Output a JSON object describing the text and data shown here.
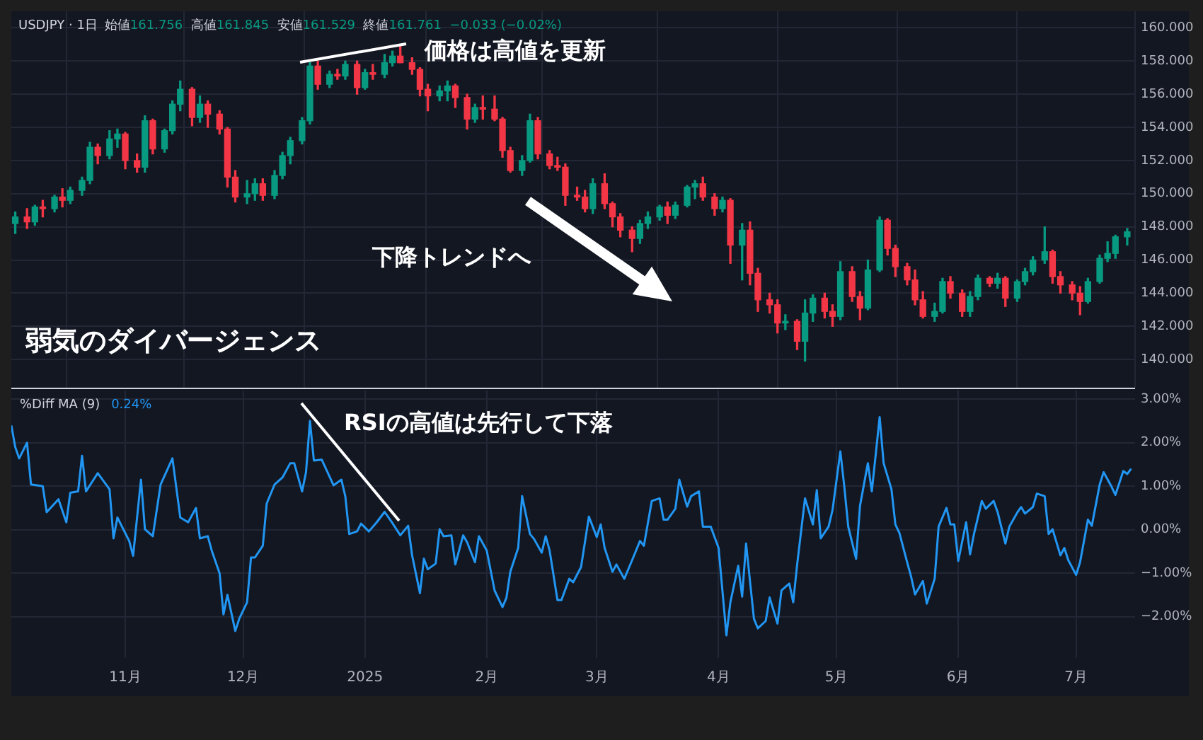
{
  "chart_data": [
    {
      "type": "candlestick",
      "title": "USDJPY · 1日",
      "subtitle": "始値161.756  高値161.845  安値161.529  終値161.761  −0.033 (−0.02%)",
      "x": [
        "2024-10-04",
        "2024-10-07",
        "2024-10-09",
        "2024-10-11",
        "2024-10-14",
        "2024-10-16",
        "2024-10-18",
        "2024-10-21",
        "2024-10-23",
        "2024-10-25",
        "2024-10-28",
        "2024-10-30",
        "2024-11-01",
        "2024-11-04",
        "2024-11-06",
        "2024-11-08",
        "2024-11-11",
        "2024-11-13",
        "2024-11-15",
        "2024-11-18",
        "2024-11-20",
        "2024-11-22",
        "2024-11-25",
        "2024-11-27",
        "2024-11-29",
        "2024-12-02",
        "2024-12-04",
        "2024-12-06",
        "2024-12-09",
        "2024-12-11",
        "2024-12-13",
        "2024-12-16",
        "2024-12-18",
        "2024-12-20",
        "2024-12-23",
        "2024-12-25",
        "2024-12-27",
        "2024-12-30",
        "2025-01-01",
        "2025-01-03",
        "2025-01-06",
        "2025-01-08",
        "2025-01-10",
        "2025-01-13",
        "2025-01-15",
        "2025-01-17",
        "2025-01-20",
        "2025-01-22",
        "2025-01-24",
        "2025-01-27",
        "2025-01-29",
        "2025-01-31",
        "2025-02-03",
        "2025-02-05",
        "2025-02-07",
        "2025-02-10",
        "2025-02-12",
        "2025-02-14",
        "2025-02-17",
        "2025-02-19",
        "2025-02-21",
        "2025-02-24",
        "2025-02-26",
        "2025-02-28",
        "2025-03-03",
        "2025-03-05",
        "2025-03-07",
        "2025-03-10",
        "2025-03-12",
        "2025-03-14",
        "2025-03-17",
        "2025-03-19",
        "2025-03-21",
        "2025-03-24",
        "2025-03-26",
        "2025-03-28",
        "2025-03-31",
        "2025-04-02",
        "2025-04-04",
        "2025-04-07",
        "2025-04-09",
        "2025-04-11",
        "2025-04-14",
        "2025-04-16",
        "2025-04-18",
        "2025-04-21",
        "2025-04-23",
        "2025-04-25",
        "2025-04-28",
        "2025-04-30",
        "2025-05-02",
        "2025-05-05",
        "2025-05-07",
        "2025-05-09",
        "2025-05-12",
        "2025-05-14",
        "2025-05-16",
        "2025-05-19",
        "2025-05-21",
        "2025-05-23",
        "2025-05-26",
        "2025-05-28",
        "2025-05-30",
        "2025-06-02",
        "2025-06-04",
        "2025-06-06",
        "2025-06-09",
        "2025-06-11",
        "2025-06-13",
        "2025-06-16",
        "2025-06-18",
        "2025-06-20",
        "2025-06-23",
        "2025-06-25",
        "2025-06-27",
        "2025-06-30",
        "2025-07-02",
        "2025-07-04",
        "2025-07-07",
        "2025-07-09",
        "2025-07-11",
        "2025-07-14"
      ],
      "ohlc": [
        [
          148.2,
          148.9,
          147.6,
          148.6
        ],
        [
          148.6,
          149.1,
          147.9,
          148.3
        ],
        [
          148.3,
          149.3,
          148.1,
          149.2
        ],
        [
          149.2,
          149.6,
          148.6,
          149.1
        ],
        [
          149.1,
          149.9,
          148.9,
          149.8
        ],
        [
          149.8,
          150.3,
          149.2,
          149.6
        ],
        [
          149.6,
          150.4,
          149.4,
          150.2
        ],
        [
          150.2,
          151.0,
          149.9,
          150.8
        ],
        [
          150.8,
          153.1,
          150.6,
          152.8
        ],
        [
          152.8,
          153.0,
          151.8,
          152.3
        ],
        [
          152.3,
          153.8,
          152.1,
          153.3
        ],
        [
          153.3,
          153.9,
          152.8,
          153.6
        ],
        [
          153.6,
          153.7,
          151.5,
          152.0
        ],
        [
          152.0,
          152.4,
          151.3,
          151.6
        ],
        [
          151.6,
          154.7,
          151.3,
          154.4
        ],
        [
          154.4,
          154.5,
          152.4,
          152.7
        ],
        [
          152.7,
          153.9,
          152.5,
          153.8
        ],
        [
          153.8,
          155.6,
          153.6,
          155.4
        ],
        [
          155.4,
          156.8,
          155.0,
          156.3
        ],
        [
          156.3,
          156.4,
          154.1,
          154.6
        ],
        [
          154.6,
          155.9,
          154.3,
          155.4
        ],
        [
          155.4,
          155.6,
          154.0,
          154.8
        ],
        [
          154.8,
          155.0,
          153.6,
          153.9
        ],
        [
          153.9,
          154.0,
          150.4,
          151.0
        ],
        [
          151.0,
          151.4,
          149.5,
          149.8
        ],
        [
          149.8,
          150.8,
          149.4,
          150.0
        ],
        [
          150.0,
          150.9,
          149.6,
          150.6
        ],
        [
          150.6,
          150.9,
          149.6,
          149.9
        ],
        [
          149.9,
          151.4,
          149.7,
          151.1
        ],
        [
          151.1,
          152.5,
          150.9,
          152.3
        ],
        [
          152.3,
          153.4,
          151.8,
          153.2
        ],
        [
          153.2,
          154.6,
          153.0,
          154.4
        ],
        [
          154.4,
          157.9,
          154.2,
          157.7
        ],
        [
          157.7,
          158.0,
          156.3,
          156.6
        ],
        [
          156.6,
          157.4,
          156.4,
          157.2
        ],
        [
          157.2,
          157.5,
          156.9,
          157.1
        ],
        [
          157.1,
          158.0,
          156.9,
          157.8
        ],
        [
          157.8,
          158.0,
          156.0,
          156.4
        ],
        [
          156.4,
          157.5,
          156.3,
          157.3
        ],
        [
          157.3,
          157.8,
          156.9,
          157.2
        ],
        [
          157.2,
          158.4,
          157.0,
          157.9
        ],
        [
          157.9,
          158.6,
          157.7,
          158.3
        ],
        [
          158.3,
          158.9,
          157.9,
          157.9
        ],
        [
          157.9,
          158.2,
          157.2,
          157.5
        ],
        [
          157.5,
          157.6,
          155.9,
          156.3
        ],
        [
          156.3,
          156.6,
          155.0,
          155.9
        ],
        [
          155.9,
          156.5,
          155.6,
          156.2
        ],
        [
          156.2,
          156.8,
          155.6,
          156.5
        ],
        [
          156.5,
          156.6,
          155.2,
          155.8
        ],
        [
          155.8,
          156.0,
          153.9,
          154.5
        ],
        [
          154.5,
          155.4,
          154.3,
          155.2
        ],
        [
          155.2,
          155.9,
          154.5,
          155.1
        ],
        [
          155.1,
          155.9,
          154.4,
          154.5
        ],
        [
          154.5,
          154.6,
          152.2,
          152.6
        ],
        [
          152.6,
          152.8,
          151.3,
          151.4
        ],
        [
          151.4,
          152.3,
          151.1,
          152.0
        ],
        [
          152.0,
          154.8,
          151.9,
          154.4
        ],
        [
          154.4,
          154.6,
          152.1,
          152.4
        ],
        [
          152.4,
          152.6,
          151.5,
          151.7
        ],
        [
          151.7,
          152.2,
          151.4,
          151.6
        ],
        [
          151.6,
          151.8,
          149.3,
          149.9
        ],
        [
          149.9,
          150.4,
          149.6,
          149.8
        ],
        [
          149.8,
          150.2,
          148.9,
          149.1
        ],
        [
          149.1,
          150.9,
          148.8,
          150.6
        ],
        [
          150.6,
          151.2,
          149.1,
          149.4
        ],
        [
          149.4,
          149.5,
          148.0,
          148.6
        ],
        [
          148.6,
          148.8,
          147.4,
          147.8
        ],
        [
          147.8,
          148.0,
          146.5,
          147.3
        ],
        [
          147.3,
          148.4,
          147.0,
          148.2
        ],
        [
          148.2,
          148.9,
          147.9,
          148.6
        ],
        [
          148.6,
          149.3,
          148.4,
          149.2
        ],
        [
          149.2,
          149.5,
          148.2,
          148.7
        ],
        [
          148.7,
          149.5,
          148.5,
          149.3
        ],
        [
          149.3,
          150.5,
          149.2,
          150.4
        ],
        [
          150.4,
          150.8,
          149.7,
          150.6
        ],
        [
          150.6,
          151.0,
          149.6,
          149.8
        ],
        [
          149.8,
          150.0,
          148.7,
          149.1
        ],
        [
          149.1,
          149.8,
          148.9,
          149.6
        ],
        [
          149.6,
          149.7,
          145.8,
          146.9
        ],
        [
          146.9,
          148.2,
          144.8,
          147.8
        ],
        [
          147.8,
          148.3,
          144.5,
          145.2
        ],
        [
          145.2,
          145.5,
          142.9,
          143.6
        ],
        [
          143.6,
          144.0,
          142.8,
          143.3
        ],
        [
          143.3,
          143.6,
          141.6,
          142.2
        ],
        [
          142.2,
          142.7,
          141.8,
          142.3
        ],
        [
          142.3,
          142.4,
          140.6,
          141.1
        ],
        [
          141.1,
          143.6,
          139.9,
          142.8
        ],
        [
          142.8,
          143.9,
          142.3,
          143.7
        ],
        [
          143.7,
          144.0,
          142.5,
          142.9
        ],
        [
          142.9,
          143.3,
          142.0,
          142.6
        ],
        [
          142.6,
          145.9,
          142.4,
          145.3
        ],
        [
          145.3,
          145.6,
          143.5,
          143.8
        ],
        [
          143.8,
          144.1,
          142.4,
          143.1
        ],
        [
          143.1,
          146.0,
          143.0,
          145.4
        ],
        [
          145.4,
          148.6,
          145.3,
          148.4
        ],
        [
          148.4,
          148.5,
          146.3,
          146.7
        ],
        [
          146.7,
          146.9,
          145.0,
          145.6
        ],
        [
          145.6,
          145.8,
          144.5,
          144.8
        ],
        [
          144.8,
          145.4,
          143.3,
          143.6
        ],
        [
          143.6,
          144.1,
          142.5,
          142.6
        ],
        [
          142.6,
          143.4,
          142.3,
          142.9
        ],
        [
          142.9,
          144.9,
          142.8,
          144.7
        ],
        [
          144.7,
          145.0,
          143.7,
          144.0
        ],
        [
          144.0,
          144.2,
          142.6,
          142.9
        ],
        [
          142.9,
          144.1,
          142.6,
          143.8
        ],
        [
          143.8,
          145.1,
          143.6,
          144.9
        ],
        [
          144.9,
          145.0,
          144.4,
          144.6
        ],
        [
          144.6,
          145.2,
          144.3,
          144.9
        ],
        [
          144.9,
          145.0,
          143.2,
          143.7
        ],
        [
          143.7,
          144.8,
          143.5,
          144.7
        ],
        [
          144.7,
          145.5,
          144.5,
          145.3
        ],
        [
          145.3,
          146.2,
          145.1,
          146.0
        ],
        [
          146.0,
          148.0,
          145.8,
          146.5
        ],
        [
          146.5,
          146.6,
          144.6,
          145.0
        ],
        [
          145.0,
          145.3,
          144.0,
          144.5
        ],
        [
          144.5,
          144.7,
          143.6,
          144.0
        ],
        [
          144.0,
          144.4,
          142.7,
          143.5
        ],
        [
          143.5,
          144.9,
          143.4,
          144.7
        ],
        [
          144.7,
          146.3,
          144.6,
          146.1
        ],
        [
          146.1,
          147.1,
          145.9,
          146.4
        ],
        [
          146.4,
          147.5,
          146.1,
          147.4
        ],
        [
          147.4,
          147.9,
          146.9,
          147.7
        ]
      ],
      "xlim": [
        "2024-10-03",
        "2025-07-16"
      ],
      "xticks": [
        {
          "value": "2024-11-01",
          "label": null
        },
        {
          "value": "2024-12-01",
          "label": null
        },
        {
          "value": "2025-01-01",
          "label": null
        },
        {
          "value": "2025-02-01",
          "label": null
        },
        {
          "value": "2025-03-01",
          "label": null
        },
        {
          "value": "2025-04-01",
          "label": null
        },
        {
          "value": "2025-05-01",
          "label": null
        },
        {
          "value": "2025-06-01",
          "label": null
        },
        {
          "value": "2025-07-01",
          "label": null
        }
      ],
      "ylim": [
        138.3,
        161.0
      ],
      "yticks": [
        {
          "value": 140,
          "label": "140.000"
        },
        {
          "value": 142,
          "label": "142.000"
        },
        {
          "value": 144,
          "label": "144.000"
        },
        {
          "value": 146,
          "label": "146.000"
        },
        {
          "value": 148,
          "label": "148.000"
        },
        {
          "value": 150,
          "label": "150.000"
        },
        {
          "value": 152,
          "label": "152.000"
        },
        {
          "value": 154,
          "label": "154.000"
        },
        {
          "value": 156,
          "label": "156.000"
        },
        {
          "value": 158,
          "label": "158.000"
        },
        {
          "value": 160,
          "label": "160.000"
        }
      ],
      "grid": true,
      "tick_labels": "y",
      "annotations": [
        "価格は高値を更新",
        "下降トレンドへ",
        "弱気のダイバージェンス"
      ]
    },
    {
      "type": "line",
      "x": [
        "2024-10-03",
        "2024-10-04",
        "2024-10-05",
        "2024-10-07",
        "2024-10-08",
        "2024-10-11",
        "2024-10-12",
        "2024-10-15",
        "2024-10-17",
        "2024-10-18",
        "2024-10-20",
        "2024-10-21",
        "2024-10-22",
        "2024-10-25",
        "2024-10-28",
        "2024-10-29",
        "2024-10-30",
        "2024-11-02",
        "2024-11-03",
        "2024-11-05",
        "2024-11-06",
        "2024-11-08",
        "2024-11-10",
        "2024-11-13",
        "2024-11-15",
        "2024-11-17",
        "2024-11-19",
        "2024-11-20",
        "2024-11-22",
        "2024-11-23",
        "2024-11-25",
        "2024-11-26",
        "2024-11-27",
        "2024-11-29",
        "2024-11-30",
        "2024-12-02",
        "2024-12-03",
        "2024-12-04",
        "2024-12-06",
        "2024-12-07",
        "2024-12-09",
        "2024-12-11",
        "2024-12-13",
        "2024-12-14",
        "2024-12-16",
        "2024-12-17",
        "2024-12-18",
        "2024-12-19",
        "2024-12-21",
        "2024-12-24",
        "2024-12-26",
        "2024-12-27",
        "2024-12-28",
        "2024-12-30",
        "2024-12-31",
        "2025-01-02",
        "2025-01-04",
        "2025-01-06",
        "2025-01-08",
        "2025-01-10",
        "2025-01-12",
        "2025-01-13",
        "2025-01-15",
        "2025-01-16",
        "2025-01-17",
        "2025-01-19",
        "2025-01-20",
        "2025-01-21",
        "2025-01-23",
        "2025-01-24",
        "2025-01-26",
        "2025-01-27",
        "2025-01-29",
        "2025-01-30",
        "2025-02-01",
        "2025-02-03",
        "2025-02-05",
        "2025-02-06",
        "2025-02-07",
        "2025-02-09",
        "2025-02-10",
        "2025-02-12",
        "2025-02-13",
        "2025-02-15",
        "2025-02-16",
        "2025-02-17",
        "2025-02-19",
        "2025-02-20",
        "2025-02-22",
        "2025-02-23",
        "2025-02-25",
        "2025-02-27",
        "2025-03-01",
        "2025-03-02",
        "2025-03-03",
        "2025-03-05",
        "2025-03-06",
        "2025-03-08",
        "2025-03-10",
        "2025-03-12",
        "2025-03-13",
        "2025-03-15",
        "2025-03-17",
        "2025-03-18",
        "2025-03-19",
        "2025-03-21",
        "2025-03-22",
        "2025-03-24",
        "2025-03-25",
        "2025-03-27",
        "2025-03-28",
        "2025-03-30",
        "2025-04-01",
        "2025-04-03",
        "2025-04-04",
        "2025-04-06",
        "2025-04-07",
        "2025-04-08",
        "2025-04-10",
        "2025-04-11",
        "2025-04-13",
        "2025-04-14",
        "2025-04-16",
        "2025-04-17",
        "2025-04-19",
        "2025-04-20",
        "2025-04-21",
        "2025-04-23",
        "2025-04-25",
        "2025-04-26",
        "2025-04-27",
        "2025-04-29",
        "2025-04-30",
        "2025-05-02",
        "2025-05-03",
        "2025-05-04",
        "2025-05-06",
        "2025-05-07",
        "2025-05-09",
        "2025-05-10",
        "2025-05-12",
        "2025-05-13",
        "2025-05-15",
        "2025-05-16",
        "2025-05-17",
        "2025-05-19",
        "2025-05-20",
        "2025-05-21",
        "2025-05-23",
        "2025-05-24",
        "2025-05-26",
        "2025-05-27",
        "2025-05-29",
        "2025-05-30",
        "2025-05-31",
        "2025-06-01",
        "2025-06-03",
        "2025-06-04",
        "2025-06-05",
        "2025-06-07",
        "2025-06-08",
        "2025-06-10",
        "2025-06-11",
        "2025-06-13",
        "2025-06-14",
        "2025-06-16",
        "2025-06-17",
        "2025-06-18",
        "2025-06-20",
        "2025-06-21",
        "2025-06-23",
        "2025-06-24",
        "2025-06-25",
        "2025-06-27",
        "2025-06-28",
        "2025-06-29",
        "2025-07-01",
        "2025-07-02",
        "2025-07-04",
        "2025-07-05",
        "2025-07-07",
        "2025-07-08",
        "2025-07-10",
        "2025-07-11",
        "2025-07-13",
        "2025-07-14",
        "2025-07-15"
      ],
      "series": [
        {
          "name": "%Diff MA (9)",
          "color": "#2196f3",
          "values": [
            2.4,
            1.9,
            1.64,
            2.0,
            1.04,
            1.0,
            0.4,
            0.7,
            0.17,
            0.85,
            0.88,
            1.7,
            0.88,
            1.3,
            0.93,
            -0.2,
            0.28,
            -0.26,
            -0.6,
            1.15,
            0.01,
            -0.15,
            1.04,
            1.64,
            0.28,
            0.17,
            0.5,
            -0.2,
            -0.15,
            -0.48,
            -1.0,
            -1.95,
            -1.5,
            -2.33,
            -2.05,
            -1.67,
            -0.64,
            -0.64,
            -0.37,
            0.6,
            1.04,
            1.2,
            1.53,
            1.53,
            0.88,
            1.32,
            2.5,
            1.59,
            1.61,
            1.02,
            1.15,
            0.77,
            -0.1,
            -0.04,
            0.14,
            -0.04,
            0.17,
            0.41,
            0.15,
            -0.13,
            0.09,
            -0.59,
            -1.46,
            -0.67,
            -0.91,
            -0.78,
            0.01,
            -0.15,
            -0.13,
            -0.8,
            -0.13,
            -0.29,
            -0.75,
            -0.15,
            -0.48,
            -1.4,
            -1.78,
            -1.57,
            -0.97,
            -0.42,
            0.77,
            -0.1,
            -0.21,
            -0.53,
            -0.15,
            -0.48,
            -1.62,
            -1.62,
            -1.13,
            -1.21,
            -0.86,
            0.3,
            -0.17,
            0.12,
            -0.42,
            -0.97,
            -0.8,
            -1.13,
            -0.7,
            -0.26,
            -0.37,
            0.66,
            0.72,
            0.23,
            0.23,
            0.48,
            1.15,
            0.53,
            0.77,
            0.88,
            0.07,
            0.07,
            -0.42,
            -2.43,
            -1.67,
            -0.83,
            -1.54,
            -0.32,
            -2.05,
            -2.27,
            -2.1,
            -1.56,
            -2.16,
            -1.4,
            -1.24,
            -1.67,
            -0.8,
            0.72,
            0.12,
            0.91,
            -0.2,
            0.07,
            0.45,
            1.8,
            0.99,
            0.07,
            -0.67,
            0.55,
            1.53,
            0.88,
            2.59,
            1.53,
            0.93,
            0.12,
            -0.07,
            -0.75,
            -1.08,
            -1.49,
            -1.18,
            -1.7,
            -1.13,
            0.07,
            0.5,
            0.12,
            0.12,
            -0.72,
            0.17,
            -0.57,
            -0.1,
            0.66,
            0.48,
            0.66,
            0.41,
            -0.32,
            0.07,
            0.39,
            0.52,
            0.37,
            0.52,
            0.83,
            0.77,
            -0.1,
            0.01,
            -0.59,
            -0.42,
            -0.7,
            -1.04,
            -0.75,
            0.23,
            0.09,
            1.04,
            1.32,
            0.99,
            0.8,
            1.35,
            1.28,
            1.4
          ]
        }
      ],
      "legend": "top left",
      "xlim": [
        "2024-10-03",
        "2025-07-16"
      ],
      "xticks": [
        {
          "value": "2024-11-01",
          "label": "11月"
        },
        {
          "value": "2024-12-01",
          "label": "12月"
        },
        {
          "value": "2025-01-01",
          "label": "2025"
        },
        {
          "value": "2025-02-01",
          "label": "2月"
        },
        {
          "value": "2025-03-01",
          "label": "3月"
        },
        {
          "value": "2025-04-01",
          "label": "4月"
        },
        {
          "value": "2025-05-01",
          "label": "5月"
        },
        {
          "value": "2025-06-01",
          "label": "6月"
        },
        {
          "value": "2025-07-01",
          "label": "7月"
        }
      ],
      "ylim": [
        -2.95,
        3.2
      ],
      "yticks": [
        {
          "value": -2,
          "label": "−2.00%"
        },
        {
          "value": -1,
          "label": "−1.00%"
        },
        {
          "value": 0,
          "label": "0.00%"
        },
        {
          "value": 1,
          "label": "1.00%"
        },
        {
          "value": 2,
          "label": "2.00%"
        },
        {
          "value": 3,
          "label": "3.00%"
        }
      ],
      "grid": true,
      "annotations": [
        "RSIの高値は先行して下落",
        "0.24%"
      ]
    }
  ]
}
